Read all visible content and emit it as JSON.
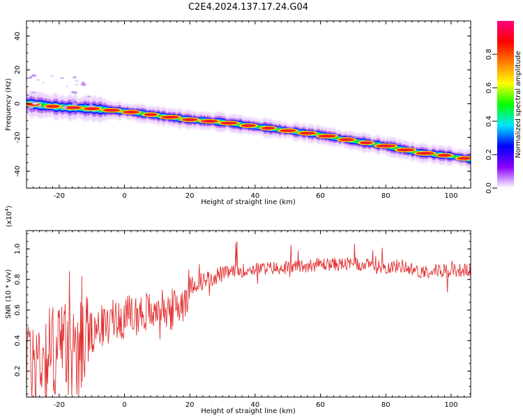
{
  "title": "C2E4.2024.137.17.24.G04",
  "chart_data": [
    {
      "type": "heatmap",
      "title": "C2E4.2024.137.17.24.G04",
      "xlabel": "Height of straight line (km)",
      "ylabel": "Frequency (Hz)",
      "xlim": [
        -30,
        106
      ],
      "ylim": [
        -50,
        49
      ],
      "xticks": [
        -20,
        0,
        20,
        40,
        60,
        80,
        100
      ],
      "yticks": [
        -40,
        -20,
        0,
        20,
        40
      ],
      "grid": false,
      "ridge": {
        "description": "Doppler frequency track (peak of normalized spectral amplitude)",
        "x": [
          -30,
          -20,
          -10,
          0,
          10,
          20,
          30,
          40,
          50,
          60,
          70,
          80,
          90,
          100,
          106
        ],
        "y": [
          0,
          -2,
          -3,
          -4.5,
          -7,
          -9.5,
          -11,
          -13.5,
          -16,
          -18.5,
          -22,
          -25,
          -29,
          -31,
          -33
        ]
      },
      "colorbar": {
        "label": "Normalized spectral amplitude",
        "range": [
          0.0,
          1.0
        ],
        "ticks": [
          0.0,
          0.2,
          0.4,
          0.6,
          0.8
        ],
        "tick_labels": [
          "0.0",
          "0.2",
          "0.4",
          "0.6",
          "0.8"
        ],
        "colors": [
          "#ffffff",
          "#8a00ff",
          "#0000ff",
          "#00e5ff",
          "#00ff00",
          "#ffff00",
          "#ff8000",
          "#ff0000",
          "#ff0080"
        ]
      }
    },
    {
      "type": "line",
      "xlabel": "Height of straight line (km)",
      "ylabel": "SNR (10 * v/v)",
      "scale_note": "(x10^4)",
      "scale_note_base": "(x10",
      "scale_note_exp": "4",
      "scale_note_close": ")",
      "xlim": [
        -30,
        106
      ],
      "ylim": [
        0.03,
        1.12
      ],
      "xticks": [
        -20,
        0,
        20,
        40,
        60,
        80,
        100
      ],
      "yticks": [
        0.2,
        0.4,
        0.6,
        0.8,
        1.0
      ],
      "ytick_labels": [
        "0.2",
        "0.4",
        "0.6",
        "0.8",
        "1.0"
      ],
      "grid": false,
      "series": [
        {
          "color": "#e03030",
          "envelope_x": [
            -30,
            -25,
            -20,
            -15,
            -10,
            -5,
            0,
            5,
            10,
            15,
            18,
            20,
            25,
            30,
            40,
            50,
            60,
            70,
            80,
            85,
            90,
            95,
            100,
            106
          ],
          "envelope_y": [
            0.25,
            0.3,
            0.35,
            0.35,
            0.45,
            0.52,
            0.55,
            0.58,
            0.62,
            0.6,
            0.66,
            0.76,
            0.8,
            0.84,
            0.87,
            0.88,
            0.9,
            0.9,
            0.88,
            0.89,
            0.85,
            0.86,
            0.86,
            0.86
          ]
        }
      ]
    }
  ]
}
